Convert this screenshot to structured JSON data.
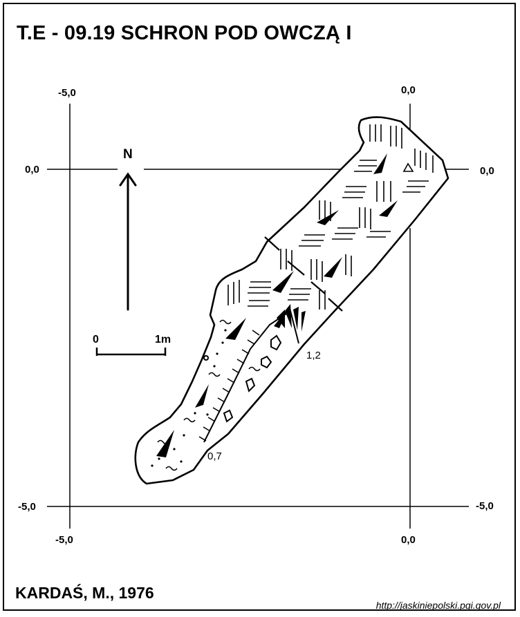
{
  "title": "T.E - 09.19  SCHRON POD OWCZĄ I",
  "author": "KARDAŚ, M., 1976",
  "source_url": "http://jaskiniepolski.pgi.gov.pl",
  "north_label": "N",
  "scale_bar": {
    "start": "0",
    "end": "1m"
  },
  "grid_labels": {
    "top_left": "-5,0",
    "top_right": "0,0",
    "left_upper": "0,0",
    "right_upper": "0,0",
    "left_lower": "-5,0",
    "right_lower": "-5,0",
    "bottom_left": "-5,0",
    "bottom_right": "0,0"
  },
  "heights": {
    "entrance": "1,2",
    "lower": "0,7"
  },
  "colors": {
    "ink": "#000000",
    "paper": "#ffffff"
  }
}
